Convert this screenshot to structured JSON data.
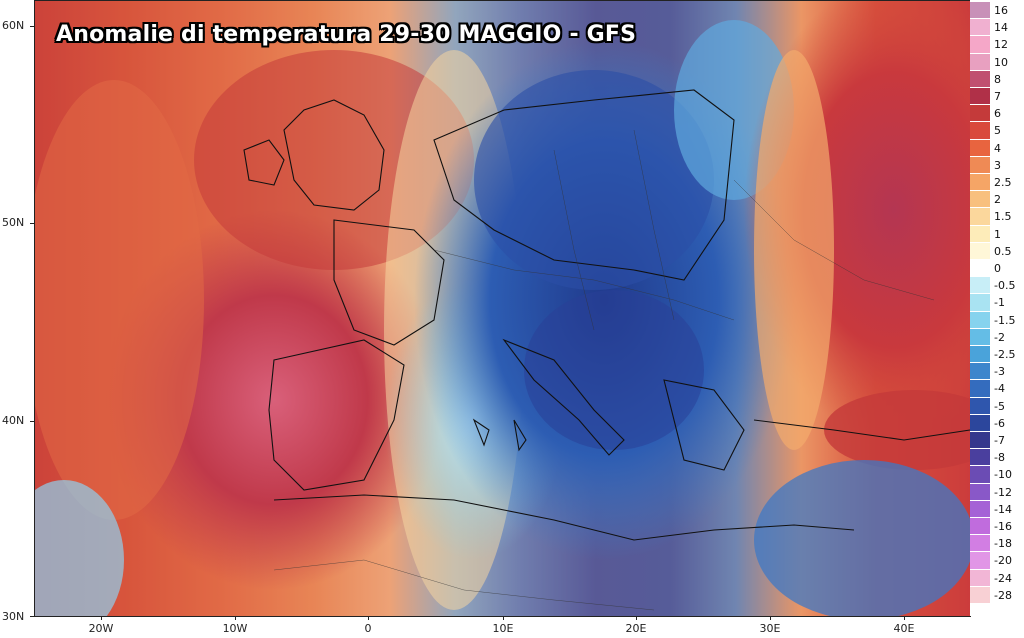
{
  "title": "Anomalie di temperatura 29-30 MAGGIO - GFS",
  "lat_labels": [
    "60N",
    "50N",
    "40N",
    "30N"
  ],
  "lon_labels": [
    "20W",
    "10W",
    "0",
    "10E",
    "20E",
    "30E",
    "40E"
  ],
  "legend": {
    "labels": [
      "16",
      "14",
      "12",
      "10",
      "8",
      "7",
      "6",
      "5",
      "4",
      "3",
      "2.5",
      "2",
      "1.5",
      "1",
      "0.5",
      "0",
      "-0.5",
      "-1",
      "-1.5",
      "-2",
      "-2.5",
      "-3",
      "-4",
      "-5",
      "-6",
      "-7",
      "-8",
      "-10",
      "-12",
      "-14",
      "-16",
      "-18",
      "-20",
      "-24",
      "-28"
    ],
    "colors": [
      "#c890b8",
      "#f0b0d0",
      "#f5a7c8",
      "#e8a0c0",
      "#c05070",
      "#b03048",
      "#c43a3a",
      "#d94a3c",
      "#e8643f",
      "#ef8a55",
      "#f5a566",
      "#f8c07e",
      "#fbd79c",
      "#fdecb9",
      "#fff7d8",
      "#ffffff",
      "#c8eef7",
      "#a9e3f2",
      "#86d3ee",
      "#64bde6",
      "#4aa3da",
      "#3d86cc",
      "#346cbe",
      "#2f56ad",
      "#2c469c",
      "#35388d",
      "#4a3f9e",
      "#6b4cb4",
      "#8958c8",
      "#a562d6",
      "#c06cdd",
      "#d27ee3",
      "#e196e6",
      "#f2b6d6",
      "#f8d0d4"
    ]
  }
}
